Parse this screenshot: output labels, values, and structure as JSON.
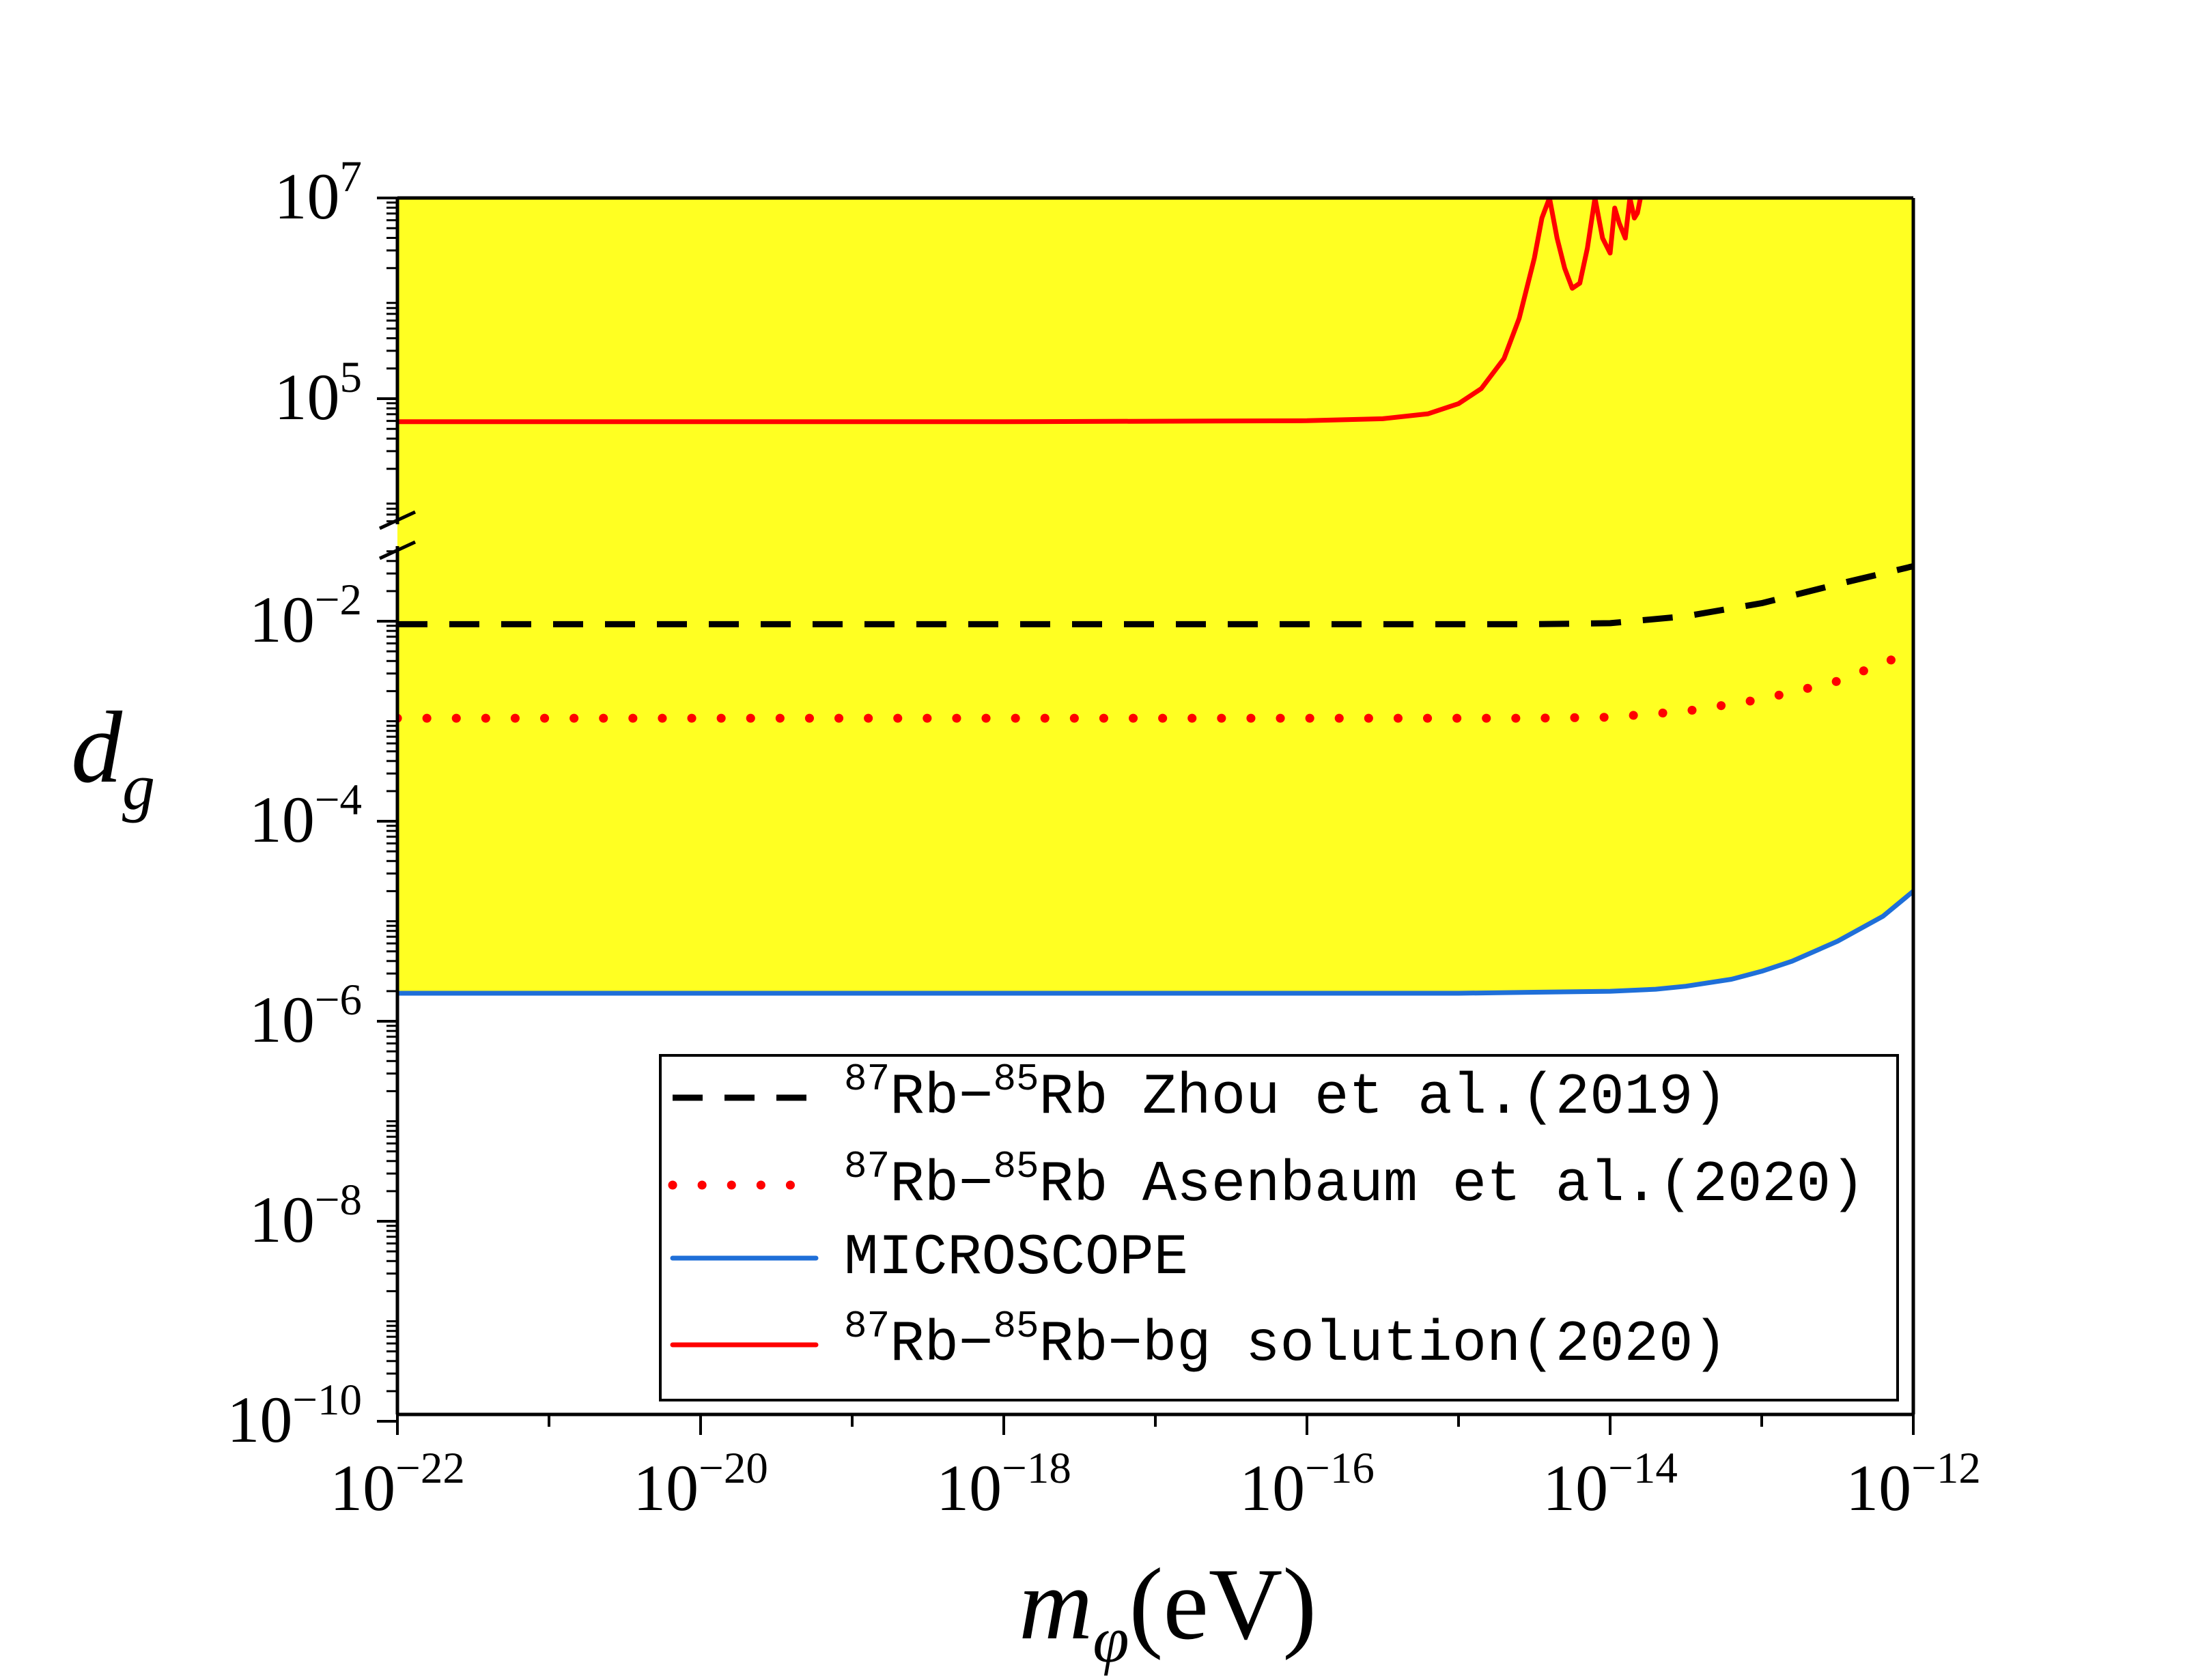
{
  "chart_data": {
    "type": "line",
    "xlabel": {
      "main": "m",
      "sub": "φ",
      "unit": "(eV)"
    },
    "ylabel": {
      "main": "d",
      "sub": "g"
    },
    "x_scale": "log",
    "y_scale": "log (broken axis)",
    "xlim": [
      1e-22,
      1e-12
    ],
    "y_lower_range": [
      1e-10,
      0.05
    ],
    "y_upper_range": [
      1000,
      10000000.0
    ],
    "x_ticks": [
      {
        "base": "10",
        "exp": "−22",
        "value": -22
      },
      {
        "base": "10",
        "exp": "−20",
        "value": -20
      },
      {
        "base": "10",
        "exp": "−18",
        "value": -18
      },
      {
        "base": "10",
        "exp": "−16",
        "value": -16
      },
      {
        "base": "10",
        "exp": "−14",
        "value": -14
      },
      {
        "base": "10",
        "exp": "−12",
        "value": -12
      }
    ],
    "y_ticks": [
      {
        "base": "10",
        "exp": "7",
        "value": 7
      },
      {
        "base": "10",
        "exp": "5",
        "value": 5
      },
      {
        "base": "10",
        "exp": "−2",
        "value": -2
      },
      {
        "base": "10",
        "exp": "−4",
        "value": -4
      },
      {
        "base": "10",
        "exp": "−6",
        "value": -6
      },
      {
        "base": "10",
        "exp": "−8",
        "value": -8
      },
      {
        "base": "10",
        "exp": "−10",
        "value": -10
      }
    ],
    "fill": {
      "color": "#ffff22",
      "description_region": "above MICROSCOPE curve"
    },
    "legend_position": "bottom-right",
    "series": [
      {
        "key": "zhou",
        "legend": {
          "sup1": "87",
          "a": "Rb−",
          "sup2": "85",
          "b": "Rb Zhou et al.(2019)"
        },
        "color": "#000000",
        "style": "dashed",
        "x_log": [
          -22,
          -20,
          -18,
          -16,
          -15,
          -14.5,
          -14,
          -13.5,
          -13,
          -12.5,
          -12
        ],
        "y_log": [
          -2.03,
          -2.03,
          -2.03,
          -2.03,
          -2.03,
          -2.03,
          -2.02,
          -1.95,
          -1.82,
          -1.63,
          -1.45
        ]
      },
      {
        "key": "asenbaum",
        "legend": {
          "sup1": "87",
          "a": "Rb−",
          "sup2": "85",
          "b": "Rb Asenbaum et al.(2020)"
        },
        "color": "#ff0000",
        "style": "dotted",
        "x_log": [
          -22,
          -20,
          -18,
          -16,
          -15,
          -14.5,
          -14,
          -13.5,
          -13,
          -12.5,
          -12
        ],
        "y_log": [
          -2.97,
          -2.97,
          -2.97,
          -2.97,
          -2.97,
          -2.97,
          -2.96,
          -2.9,
          -2.78,
          -2.6,
          -2.3
        ]
      },
      {
        "key": "microscope",
        "legend": {
          "sup1": "",
          "a": "MICROSCOPE",
          "sup2": "",
          "b": ""
        },
        "color": "#1f6fd8",
        "style": "solid",
        "x_log": [
          -22,
          -20,
          -18,
          -16,
          -15,
          -14.5,
          -14,
          -13.7,
          -13.5,
          -13.2,
          -13,
          -12.8,
          -12.5,
          -12.2,
          -12
        ],
        "y_log": [
          -5.72,
          -5.72,
          -5.72,
          -5.72,
          -5.72,
          -5.71,
          -5.7,
          -5.68,
          -5.65,
          -5.58,
          -5.5,
          -5.4,
          -5.2,
          -4.95,
          -4.7
        ]
      },
      {
        "key": "bg",
        "legend": {
          "sup1": "87",
          "a": "Rb−",
          "sup2": "85",
          "b": "Rb−bg solution(2020)"
        },
        "color": "#ff0000",
        "style": "solid",
        "x_log": [
          -22,
          -20,
          -18,
          -16,
          -15.5,
          -15.2,
          -15.0,
          -14.85,
          -14.7,
          -14.6,
          -14.5,
          -14.45,
          -14.4,
          -14.35,
          -14.3,
          -14.25,
          -14.2,
          -14.15,
          -14.1,
          -14.05,
          -14.0,
          -13.97,
          -13.94,
          -13.9,
          -13.87,
          -13.84,
          -13.82,
          -13.8
        ],
        "y_log": [
          4.77,
          4.77,
          4.77,
          4.78,
          4.8,
          4.85,
          4.95,
          5.1,
          5.4,
          5.8,
          6.4,
          6.8,
          7.0,
          6.6,
          6.3,
          6.1,
          6.15,
          6.5,
          7.0,
          6.6,
          6.45,
          6.9,
          6.75,
          6.6,
          7.0,
          6.8,
          6.85,
          7.0
        ]
      }
    ]
  }
}
